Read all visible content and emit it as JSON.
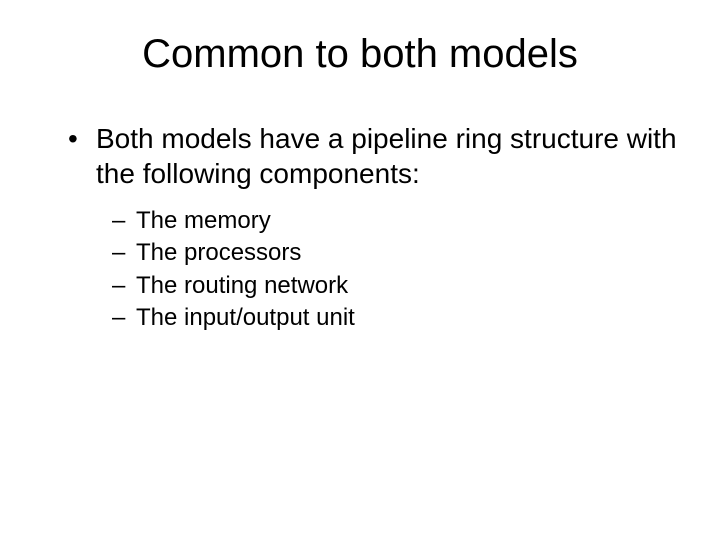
{
  "title": "Common to both models",
  "main_bullet": "Both models have a pipeline ring structure with the following components:",
  "sub_bullets": [
    "The memory",
    "The processors",
    "The routing network",
    "The input/output unit"
  ],
  "colors": {
    "background": "#ffffff",
    "text": "#000000"
  },
  "typography": {
    "title_fontsize": 40,
    "main_fontsize": 28,
    "sub_fontsize": 24,
    "font_family": "Arial"
  }
}
